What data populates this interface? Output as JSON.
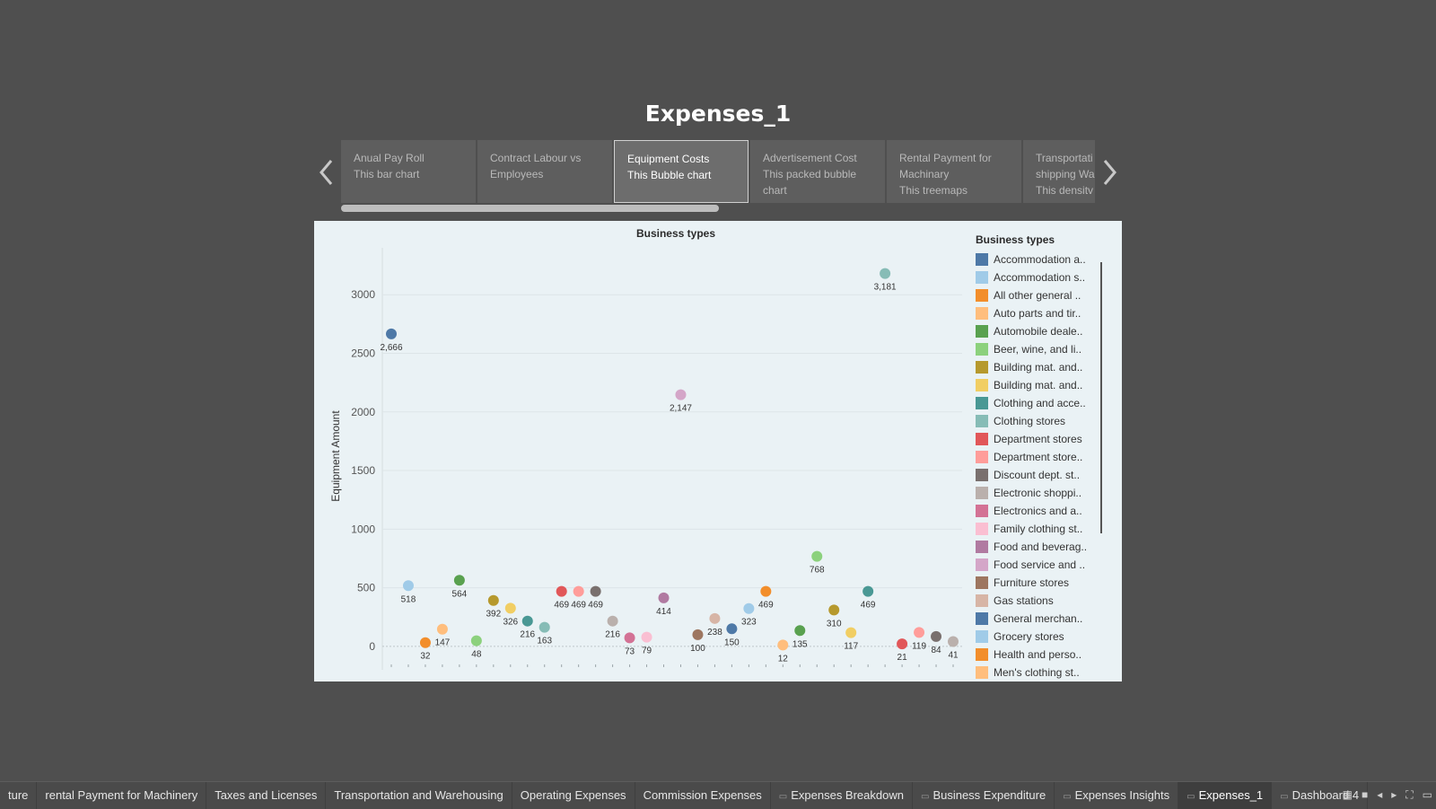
{
  "story": {
    "title": "Expenses_1",
    "points": [
      {
        "line1": "Anual Pay Roll",
        "line2": "This bar chart",
        "line3": ""
      },
      {
        "line1": "Contract Labour vs",
        "line2": "Employees",
        "line3": ""
      },
      {
        "line1": "Equipment Costs",
        "line2": "This Bubble chart",
        "line3": ""
      },
      {
        "line1": "Advertisement Cost",
        "line2": "This packed bubble",
        "line3": "chart"
      },
      {
        "line1": "Rental Payment for",
        "line2": "Machinary",
        "line3": "This  treemaps"
      },
      {
        "line1": "Transportati",
        "line2": "shipping Wa",
        "line3": "This densitv"
      }
    ]
  },
  "legend": {
    "title": "Business types",
    "items": [
      {
        "label": "Accommodation a..",
        "color": "#4e79a7"
      },
      {
        "label": "Accommodation s..",
        "color": "#a0cbe8"
      },
      {
        "label": "All other general ..",
        "color": "#f28e2b"
      },
      {
        "label": "Auto parts and tir..",
        "color": "#ffbe7d"
      },
      {
        "label": "Automobile deale..",
        "color": "#59a14f"
      },
      {
        "label": "Beer, wine, and li..",
        "color": "#8cd17d"
      },
      {
        "label": "Building mat. and..",
        "color": "#b6992d"
      },
      {
        "label": "Building mat. and..",
        "color": "#f1ce63"
      },
      {
        "label": "Clothing and acce..",
        "color": "#499894"
      },
      {
        "label": "Clothing stores",
        "color": "#86bcb6"
      },
      {
        "label": "Department stores",
        "color": "#e15759"
      },
      {
        "label": "Department store..",
        "color": "#ff9d9a"
      },
      {
        "label": "Discount dept. st..",
        "color": "#79706e"
      },
      {
        "label": "Electronic shoppi..",
        "color": "#bab0ac"
      },
      {
        "label": "Electronics and a..",
        "color": "#d37295"
      },
      {
        "label": "Family clothing st..",
        "color": "#fabfd2"
      },
      {
        "label": "Food and beverag..",
        "color": "#b07aa1"
      },
      {
        "label": "Food service and ..",
        "color": "#d4a6c8"
      },
      {
        "label": "Furniture stores",
        "color": "#9d7660"
      },
      {
        "label": "Gas stations",
        "color": "#d7b5a6"
      },
      {
        "label": "General merchan..",
        "color": "#4e79a7"
      },
      {
        "label": "Grocery stores",
        "color": "#a0cbe8"
      },
      {
        "label": "Health and perso..",
        "color": "#f28e2b"
      },
      {
        "label": "Men's clothing st..",
        "color": "#ffbe7d"
      }
    ]
  },
  "tabs": [
    {
      "label": "ture",
      "active": false,
      "icon": ""
    },
    {
      "label": "rental Payment for Machinery",
      "active": false,
      "icon": ""
    },
    {
      "label": "Taxes and Licenses",
      "active": false,
      "icon": ""
    },
    {
      "label": "Transportation and Warehousing",
      "active": false,
      "icon": ""
    },
    {
      "label": "Operating Expenses",
      "active": false,
      "icon": ""
    },
    {
      "label": "Commission Expenses",
      "active": false,
      "icon": ""
    },
    {
      "label": "Expenses Breakdown",
      "active": false,
      "icon": "▭"
    },
    {
      "label": "Business Expenditure",
      "active": false,
      "icon": "▭"
    },
    {
      "label": "Expenses Insights",
      "active": false,
      "icon": "▭"
    },
    {
      "label": "Expenses_1",
      "active": true,
      "icon": "▭"
    },
    {
      "label": "Dashboard 4",
      "active": false,
      "icon": "▭"
    }
  ],
  "chart_data": {
    "type": "scatter",
    "title": "Business types",
    "xlabel": "",
    "ylabel": "Equipment Amount",
    "ylim": [
      -200,
      3400
    ],
    "yticks": [
      0,
      500,
      1000,
      1500,
      2000,
      2500,
      3000
    ],
    "grid": true,
    "legend_position": "right",
    "points": [
      {
        "x": 1,
        "y": 2666,
        "label": "2,666",
        "color": "#4e79a7"
      },
      {
        "x": 2,
        "y": 518,
        "label": "518",
        "color": "#a0cbe8"
      },
      {
        "x": 3,
        "y": 32,
        "label": "32",
        "color": "#f28e2b"
      },
      {
        "x": 4,
        "y": 147,
        "label": "147",
        "color": "#ffbe7d"
      },
      {
        "x": 5,
        "y": 564,
        "label": "564",
        "color": "#59a14f"
      },
      {
        "x": 6,
        "y": 48,
        "label": "48",
        "color": "#8cd17d"
      },
      {
        "x": 7,
        "y": 392,
        "label": "392",
        "color": "#b6992d"
      },
      {
        "x": 8,
        "y": 326,
        "label": "326",
        "color": "#f1ce63"
      },
      {
        "x": 9,
        "y": 216,
        "label": "216",
        "color": "#499894"
      },
      {
        "x": 10,
        "y": 163,
        "label": "163",
        "color": "#86bcb6"
      },
      {
        "x": 11,
        "y": 469,
        "label": "469",
        "color": "#e15759"
      },
      {
        "x": 12,
        "y": 469,
        "label": "469",
        "color": "#ff9d9a"
      },
      {
        "x": 13,
        "y": 469,
        "label": "469",
        "color": "#79706e"
      },
      {
        "x": 14,
        "y": 216,
        "label": "216",
        "color": "#bab0ac"
      },
      {
        "x": 15,
        "y": 73,
        "label": "73",
        "color": "#d37295"
      },
      {
        "x": 16,
        "y": 79,
        "label": "79",
        "color": "#fabfd2"
      },
      {
        "x": 17,
        "y": 414,
        "label": "414",
        "color": "#b07aa1"
      },
      {
        "x": 18,
        "y": 2147,
        "label": "2,147",
        "color": "#d4a6c8"
      },
      {
        "x": 19,
        "y": 100,
        "label": "100",
        "color": "#9d7660"
      },
      {
        "x": 20,
        "y": 238,
        "label": "238",
        "color": "#d7b5a6"
      },
      {
        "x": 21,
        "y": 150,
        "label": "150",
        "color": "#4e79a7"
      },
      {
        "x": 22,
        "y": 323,
        "label": "323",
        "color": "#a0cbe8"
      },
      {
        "x": 23,
        "y": 469,
        "label": "469",
        "color": "#f28e2b"
      },
      {
        "x": 24,
        "y": 12,
        "label": "12",
        "color": "#ffbe7d"
      },
      {
        "x": 25,
        "y": 135,
        "label": "135",
        "color": "#59a14f"
      },
      {
        "x": 26,
        "y": 768,
        "label": "768",
        "color": "#8cd17d"
      },
      {
        "x": 27,
        "y": 310,
        "label": "310",
        "color": "#b6992d"
      },
      {
        "x": 28,
        "y": 117,
        "label": "117",
        "color": "#f1ce63"
      },
      {
        "x": 29,
        "y": 469,
        "label": "469",
        "color": "#499894"
      },
      {
        "x": 30,
        "y": 3181,
        "label": "3,181",
        "color": "#86bcb6"
      },
      {
        "x": 31,
        "y": 21,
        "label": "21",
        "color": "#e15759"
      },
      {
        "x": 32,
        "y": 119,
        "label": "119",
        "color": "#ff9d9a"
      },
      {
        "x": 33,
        "y": 84,
        "label": "84",
        "color": "#79706e"
      },
      {
        "x": 34,
        "y": 41,
        "label": "41",
        "color": "#bab0ac"
      }
    ]
  }
}
